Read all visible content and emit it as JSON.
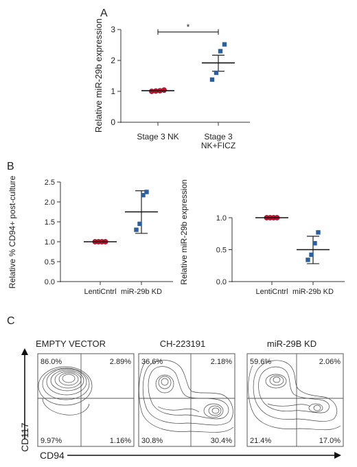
{
  "panel_labels": {
    "a": "A",
    "b": "B",
    "c": "C"
  },
  "chart_data": [
    {
      "panel": "A",
      "type": "scatter",
      "ylabel": "Relative miR-29b expression",
      "ylim": [
        0,
        3
      ],
      "yticks": [
        "0",
        "1",
        "2",
        "3"
      ],
      "categories": [
        "Stage 3 NK",
        "Stage 3 NK+FICZ"
      ],
      "category_lines": [
        [
          "Stage 3 NK"
        ],
        [
          "Stage 3",
          "NK+FICZ"
        ]
      ],
      "series": [
        {
          "points": [
            1.0,
            1.01,
            1.02,
            1.04
          ],
          "mean": 1.02,
          "error": [
            1.02,
            1.02
          ],
          "marker": "circle",
          "color": "#c8102e"
        },
        {
          "points": [
            1.38,
            1.6,
            2.3,
            2.52
          ],
          "mean": 1.92,
          "error": [
            1.65,
            2.17
          ],
          "marker": "square",
          "color": "#2b5fa0"
        }
      ],
      "annotation": {
        "text": "*",
        "between": [
          0,
          1
        ],
        "y": 2.92
      }
    },
    {
      "panel": "B-left",
      "type": "scatter",
      "ylabel": "Relative % CD94+ post-culture",
      "ylim": [
        0,
        2.5
      ],
      "yticks": [
        "0.0",
        "0.5",
        "1.0",
        "1.5",
        "2.0",
        "2.5"
      ],
      "categories": [
        "LentiCntrl",
        "miR-29b KD"
      ],
      "series": [
        {
          "points": [
            1.0,
            1.0,
            1.0,
            1.0
          ],
          "mean": 1.0,
          "error": [
            1.0,
            1.0
          ],
          "marker": "circle",
          "color": "#c8102e"
        },
        {
          "points": [
            1.3,
            1.45,
            2.17,
            2.25
          ],
          "mean": 1.75,
          "error": [
            1.21,
            2.28
          ],
          "marker": "square",
          "color": "#2b5fa0"
        }
      ]
    },
    {
      "panel": "B-right",
      "type": "scatter",
      "ylabel": "Relative miR-29b expression",
      "ylim": [
        0,
        1.0
      ],
      "yticks": [
        "0.0",
        "0.5",
        "1.0"
      ],
      "categories": [
        "LentiCntrl",
        "miR-29b KD"
      ],
      "series": [
        {
          "points": [
            1.0,
            1.0,
            1.0,
            1.0
          ],
          "mean": 1.0,
          "error": [
            1.0,
            1.0
          ],
          "marker": "circle",
          "color": "#c8102e"
        },
        {
          "points": [
            0.34,
            0.42,
            0.6,
            0.77
          ],
          "mean": 0.5,
          "error": [
            0.28,
            0.71
          ],
          "marker": "square",
          "color": "#2b5fa0"
        }
      ]
    }
  ],
  "flow": {
    "y_axis_label": "CD117",
    "x_axis_label": "CD94",
    "panels": [
      {
        "title": "EMPTY VECTOR",
        "quadrants": {
          "top_left": "86.0%",
          "top_right": "2.89%",
          "bottom_left": "9.97%",
          "bottom_right": "1.16%"
        }
      },
      {
        "title": "CH-223191",
        "quadrants": {
          "top_left": "36.6%",
          "top_right": "2.18%",
          "bottom_left": "30.8%",
          "bottom_right": "30.4%"
        }
      },
      {
        "title": "miR-29B KD",
        "quadrants": {
          "top_left": "59.6%",
          "top_right": "2.06%",
          "bottom_left": "21.4%",
          "bottom_right": "17.0%"
        }
      }
    ]
  }
}
